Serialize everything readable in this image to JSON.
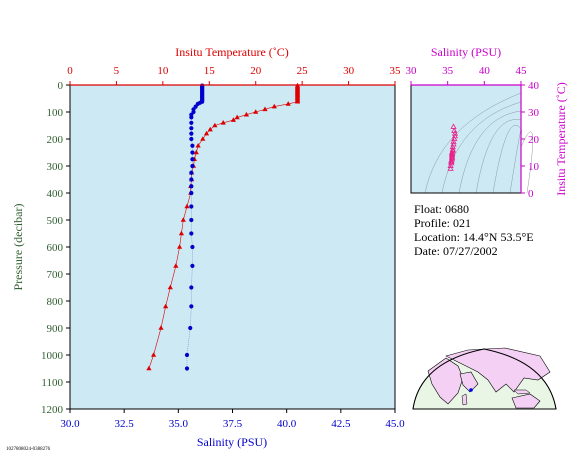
{
  "colors": {
    "temperature": "#dd0000",
    "salinity_profile": "#0000cc",
    "salinity_axis": "#cc00cc",
    "plot_bg": "#cde9f4",
    "axis_green": "#2f5f2f",
    "map_land": "#f4d0f4"
  },
  "chart_data": [
    {
      "type": "line",
      "title": "",
      "top_xlabel": "Insitu Temperature (˚C)",
      "xlabel": "Salinity (PSU)",
      "ylabel": "Pressure (decibar)",
      "temp_lim": [
        0,
        35
      ],
      "temp_ticks": [
        "0",
        "5",
        "10",
        "15",
        "20",
        "25",
        "30",
        "35"
      ],
      "sal_lim": [
        30.0,
        45.0
      ],
      "sal_ticks": [
        "30.0",
        "32.5",
        "35.0",
        "37.5",
        "40.0",
        "42.5",
        "45.0"
      ],
      "ylim": [
        1200,
        0
      ],
      "y_ticks": [
        "0",
        "100",
        "200",
        "300",
        "400",
        "500",
        "600",
        "700",
        "800",
        "900",
        "1000",
        "1100",
        "1200"
      ],
      "series": [
        {
          "name": "",
          "kind": "temperature",
          "pressure": [
            2,
            6,
            10,
            14,
            18,
            22,
            26,
            30,
            34,
            38,
            42,
            46,
            50,
            54,
            58,
            62,
            70,
            80,
            90,
            100,
            110,
            120,
            130,
            140,
            150,
            165,
            180,
            200,
            225,
            250,
            275,
            300,
            325,
            350,
            375,
            400,
            450,
            500,
            550,
            600,
            670,
            750,
            820,
            900,
            1000,
            1050
          ],
          "values": [
            24.5,
            24.5,
            24.5,
            24.5,
            24.5,
            24.5,
            24.5,
            24.5,
            24.5,
            24.5,
            24.5,
            24.5,
            24.5,
            24.5,
            24.5,
            24.5,
            23.5,
            22.0,
            21.0,
            20.0,
            19.0,
            18.0,
            17.6,
            16.5,
            15.6,
            15.1,
            14.7,
            14.3,
            13.8,
            13.6,
            13.4,
            13.3,
            13.1,
            13.1,
            13.0,
            13.0,
            12.6,
            12.2,
            12.0,
            11.8,
            11.4,
            10.8,
            10.3,
            9.8,
            9.0,
            8.5
          ]
        },
        {
          "name": "",
          "kind": "salinity",
          "pressure": [
            2,
            6,
            10,
            14,
            18,
            22,
            26,
            30,
            34,
            38,
            42,
            46,
            50,
            54,
            58,
            62,
            66,
            70,
            80,
            90,
            100,
            110,
            120,
            140,
            160,
            180,
            200,
            225,
            250,
            275,
            300,
            325,
            350,
            375,
            400,
            450,
            500,
            550,
            600,
            670,
            750,
            820,
            900,
            1000,
            1050
          ],
          "values": [
            36.1,
            36.1,
            36.1,
            36.1,
            36.1,
            36.1,
            36.1,
            36.1,
            36.1,
            36.1,
            36.1,
            36.1,
            36.1,
            36.1,
            36.1,
            36.1,
            36.0,
            35.9,
            35.8,
            35.7,
            35.7,
            35.6,
            35.6,
            35.6,
            35.6,
            35.6,
            35.6,
            35.65,
            35.65,
            35.65,
            35.65,
            35.6,
            35.6,
            35.6,
            35.6,
            35.6,
            35.6,
            35.6,
            35.65,
            35.65,
            35.6,
            35.6,
            35.55,
            35.4,
            35.4
          ]
        }
      ]
    },
    {
      "type": "scatter",
      "title": "",
      "xlabel": "Salinity (PSU)",
      "ylabel": "Insitu Temperature (˚C)",
      "xlim": [
        30,
        45
      ],
      "x_ticks": [
        "30",
        "35",
        "40",
        "45"
      ],
      "ylim": [
        0,
        40
      ],
      "y_ticks": [
        "0",
        "10",
        "20",
        "30",
        "40"
      ],
      "series": [
        {
          "name": "",
          "x": [
            35.8,
            35.9,
            36.0,
            36.0,
            35.9,
            35.8,
            35.8,
            35.7,
            35.7,
            35.7,
            35.6,
            35.6,
            35.6,
            35.6,
            35.6,
            35.6,
            35.5,
            35.5,
            35.5,
            35.4,
            35.4
          ],
          "y": [
            24.5,
            23.0,
            22.0,
            21.0,
            20.0,
            19.0,
            18.0,
            17.0,
            16.0,
            15.5,
            15.0,
            14.5,
            14.0,
            13.5,
            13.0,
            12.5,
            12.0,
            11.5,
            11.0,
            10.0,
            9.0
          ]
        }
      ]
    }
  ],
  "float_info": {
    "float": "Float:  0680",
    "profile": "Profile:  021",
    "location": "Location:  14.4°N  53.5°E",
    "date": "Date:  07/27/2002"
  },
  "footer_id": "1027808024-0388276",
  "map": {
    "marker": "float-location-marker"
  }
}
